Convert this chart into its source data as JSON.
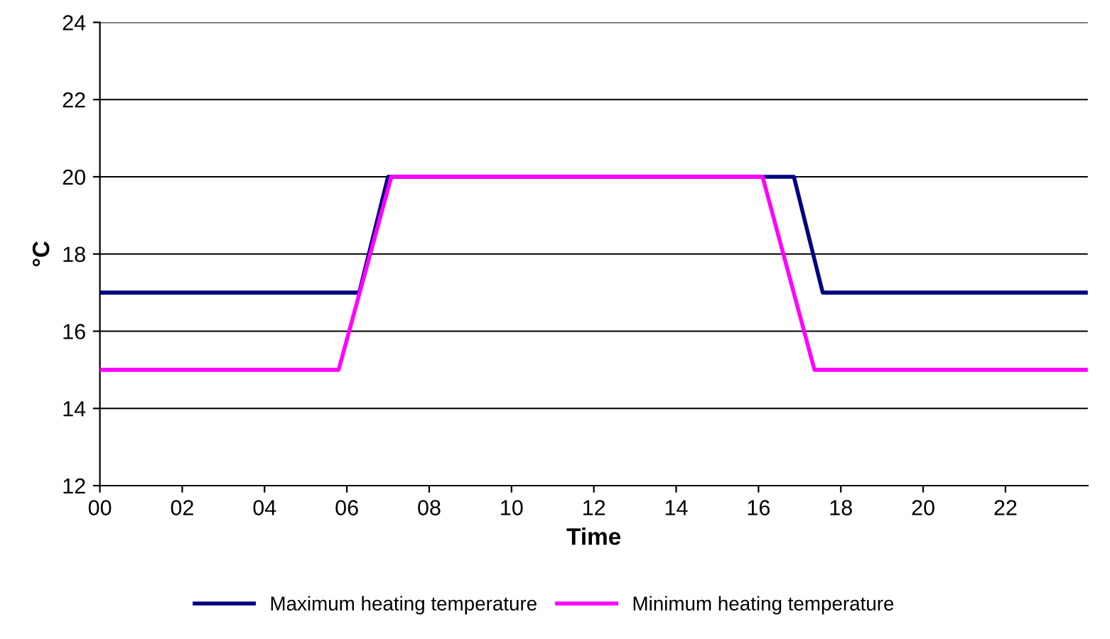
{
  "chart_data": {
    "type": "line",
    "xlabel": "Time",
    "ylabel": "°C",
    "series": [
      {
        "name": "Maximum heating temperature",
        "color": "#000080",
        "x": [
          0,
          6.3,
          7.0,
          16.86,
          17.56,
          24
        ],
        "values": [
          17,
          17,
          20,
          20,
          17,
          17
        ]
      },
      {
        "name": "Minimum heating temperature",
        "color": "#ff00ff",
        "x": [
          0,
          5.8,
          7.08,
          16.1,
          17.36,
          24
        ],
        "values": [
          15,
          15,
          20,
          20,
          15,
          15
        ]
      }
    ],
    "xlim": [
      0,
      24
    ],
    "ylim": [
      12,
      24
    ],
    "xticks": [
      {
        "value": 0,
        "label": "00"
      },
      {
        "value": 2,
        "label": "02"
      },
      {
        "value": 4,
        "label": "04"
      },
      {
        "value": 6,
        "label": "06"
      },
      {
        "value": 8,
        "label": "08"
      },
      {
        "value": 10,
        "label": "10"
      },
      {
        "value": 12,
        "label": "12"
      },
      {
        "value": 14,
        "label": "14"
      },
      {
        "value": 16,
        "label": "16"
      },
      {
        "value": 18,
        "label": "18"
      },
      {
        "value": 20,
        "label": "20"
      },
      {
        "value": 22,
        "label": "22"
      }
    ],
    "yticks": [
      12,
      14,
      16,
      18,
      20,
      22,
      24
    ],
    "grid": "y",
    "legend": "bottom",
    "marker": "none",
    "line_style": "solid"
  }
}
